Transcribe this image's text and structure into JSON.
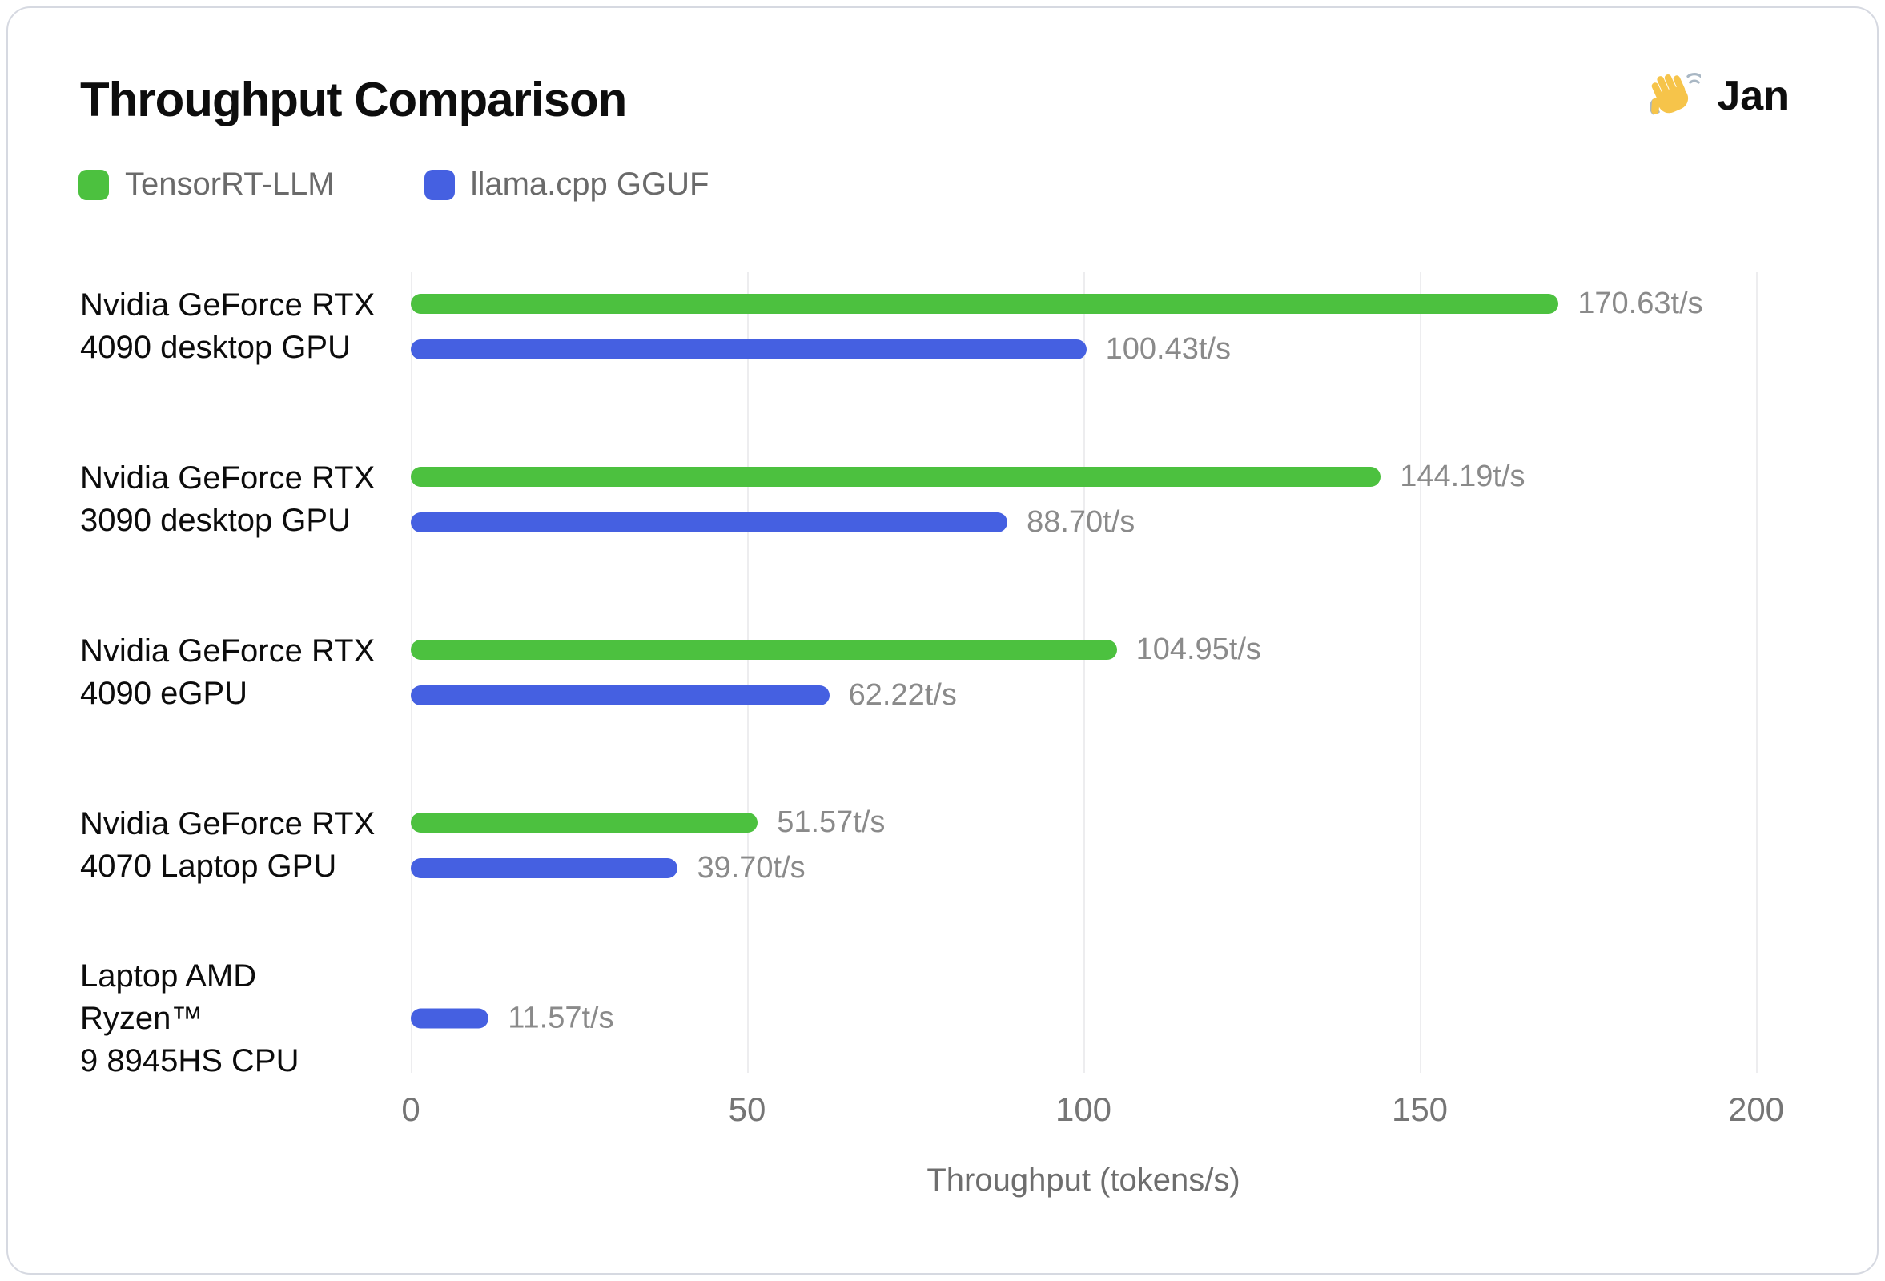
{
  "header": {
    "title": "Throughput Comparison",
    "brand": "Jan",
    "brand_icon": "waving-hand-icon"
  },
  "legend": [
    {
      "label": "TensorRT-LLM",
      "color": "#4CC13F"
    },
    {
      "label": "llama.cpp GGUF",
      "color": "#4560E1"
    }
  ],
  "chart_data": {
    "type": "bar",
    "orientation": "horizontal",
    "title": "Throughput Comparison",
    "categories": [
      "Nvidia GeForce RTX\n4090 desktop GPU",
      "Nvidia GeForce RTX\n3090 desktop GPU",
      "Nvidia GeForce RTX\n4090 eGPU",
      "Nvidia GeForce RTX\n4070 Laptop GPU",
      "Laptop AMD Ryzen™\n9 8945HS CPU"
    ],
    "series": [
      {
        "name": "TensorRT-LLM",
        "color": "#4CC13F",
        "values": [
          170.63,
          144.19,
          104.95,
          51.57,
          null
        ]
      },
      {
        "name": "llama.cpp GGUF",
        "color": "#4560E1",
        "values": [
          100.43,
          88.7,
          62.22,
          39.7,
          11.57
        ]
      }
    ],
    "unit": "t/s",
    "xlabel": "Throughput (tokens/s)",
    "xticks": [
      0,
      50,
      100,
      150,
      200
    ],
    "xlim": [
      0,
      216
    ],
    "grid": "vertical-only",
    "legend_position": "top-left",
    "value_labels": "end-of-bar"
  },
  "colors": {
    "series_green": "#4CC13F",
    "series_blue": "#4560E1",
    "grid_line": "#ededef",
    "text_primary": "#0d0d0d",
    "value_text": "#8a8a8a",
    "tick_text": "#757575",
    "card_border": "#d6d9e1"
  }
}
